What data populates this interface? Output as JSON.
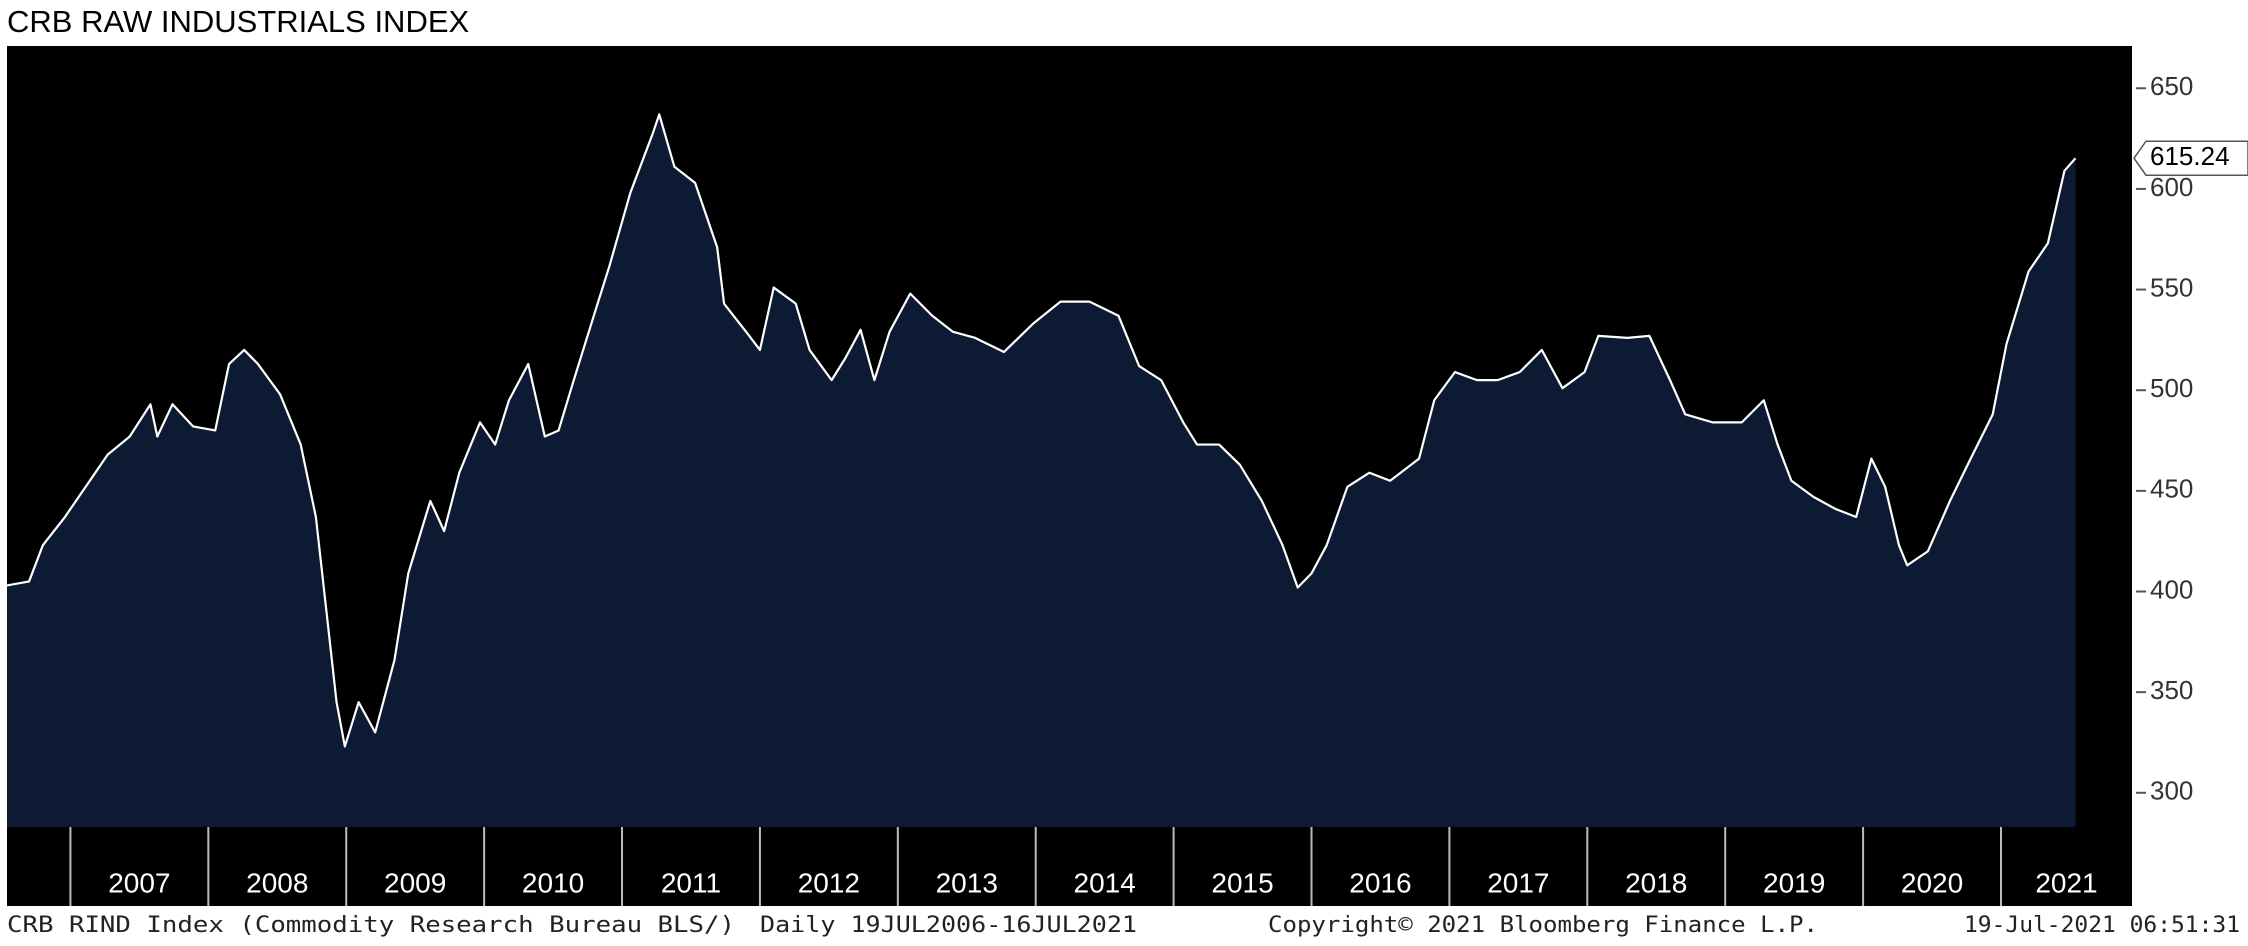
{
  "chart_data": {
    "type": "area",
    "title": "CRB RAW INDUSTRIALS INDEX",
    "x": [
      2006.54,
      2006.7,
      2006.8,
      2006.96,
      2007.11,
      2007.27,
      2007.43,
      2007.58,
      2007.63,
      2007.74,
      2007.89,
      2008.05,
      2008.15,
      2008.26,
      2008.36,
      2008.52,
      2008.67,
      2008.78,
      2008.86,
      2008.93,
      2008.99,
      2009.09,
      2009.21,
      2009.35,
      2009.45,
      2009.61,
      2009.71,
      2009.82,
      2009.97,
      2010.08,
      2010.18,
      2010.32,
      2010.44,
      2010.54,
      2010.65,
      2010.8,
      2010.91,
      2011.06,
      2011.22,
      2011.27,
      2011.38,
      2011.53,
      2011.69,
      2011.74,
      2011.9,
      2012.0,
      2012.1,
      2012.26,
      2012.36,
      2012.52,
      2012.62,
      2012.73,
      2012.83,
      2012.94,
      2013.09,
      2013.25,
      2013.4,
      2013.56,
      2013.77,
      2013.98,
      2014.18,
      2014.39,
      2014.6,
      2014.75,
      2014.91,
      2015.07,
      2015.17,
      2015.33,
      2015.48,
      2015.64,
      2015.79,
      2015.9,
      2016.0,
      2016.11,
      2016.26,
      2016.42,
      2016.57,
      2016.78,
      2016.89,
      2017.04,
      2017.2,
      2017.35,
      2017.51,
      2017.67,
      2017.82,
      2017.98,
      2018.08,
      2018.29,
      2018.45,
      2018.6,
      2018.71,
      2018.91,
      2019.12,
      2019.28,
      2019.38,
      2019.48,
      2019.64,
      2019.8,
      2019.95,
      2020.06,
      2020.16,
      2020.26,
      2020.32,
      2020.47,
      2020.63,
      2020.78,
      2020.94,
      2021.04,
      2021.2,
      2021.34,
      2021.46,
      2021.54
    ],
    "values": [
      403,
      405,
      423,
      437,
      452,
      468,
      477,
      493,
      477,
      493,
      482,
      480,
      513,
      520,
      513,
      498,
      473,
      437,
      388,
      345,
      323,
      345,
      330,
      366,
      409,
      445,
      430,
      459,
      484,
      473,
      495,
      513,
      477,
      480,
      505,
      538,
      562,
      598,
      627,
      637,
      611,
      603,
      571,
      543,
      529,
      520,
      551,
      543,
      520,
      505,
      516,
      530,
      505,
      529,
      548,
      537,
      529,
      526,
      519,
      533,
      544,
      544,
      537,
      512,
      505,
      484,
      473,
      473,
      463,
      445,
      423,
      402,
      409,
      423,
      452,
      459,
      455,
      466,
      495,
      509,
      505,
      505,
      509,
      520,
      501,
      509,
      527,
      526,
      527,
      505,
      488,
      484,
      484,
      495,
      473,
      455,
      447,
      441,
      437,
      466,
      452,
      423,
      413,
      420,
      445,
      466,
      488,
      523,
      559,
      573,
      609,
      615.24
    ],
    "xlim": [
      2006.54,
      2021.95
    ],
    "xticks": [
      2007,
      2008,
      2009,
      2010,
      2011,
      2012,
      2013,
      2014,
      2015,
      2016,
      2017,
      2018,
      2019,
      2020,
      2021
    ],
    "ylim": [
      283,
      671
    ],
    "yticks": [
      300,
      350,
      400,
      450,
      500,
      550,
      600,
      650
    ],
    "line_color": "#ffffff",
    "fill_color": "#0c1b33",
    "grid": false,
    "footer_source": "CRB RIND Index (Commodity Research Bureau BLS/)",
    "footer_range": "Daily 19JUL2006-16JUL2021",
    "footer_copyright": "Copyright© 2021 Bloomberg Finance L.P.",
    "footer_timestamp": "19-Jul-2021 06:51:31"
  }
}
